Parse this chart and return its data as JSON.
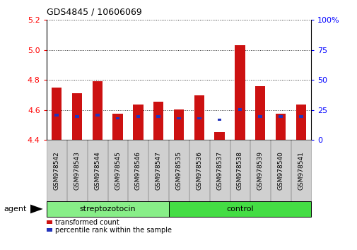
{
  "title": "GDS4845 / 10606069",
  "samples": [
    "GSM978542",
    "GSM978543",
    "GSM978544",
    "GSM978545",
    "GSM978546",
    "GSM978547",
    "GSM978535",
    "GSM978536",
    "GSM978537",
    "GSM978538",
    "GSM978539",
    "GSM978540",
    "GSM978541"
  ],
  "red_values": [
    4.75,
    4.71,
    4.79,
    4.575,
    4.635,
    4.655,
    4.605,
    4.7,
    4.455,
    5.03,
    4.76,
    4.575,
    4.635
  ],
  "blue_values": [
    4.565,
    4.555,
    4.565,
    4.545,
    4.555,
    4.555,
    4.545,
    4.545,
    4.535,
    4.605,
    4.555,
    4.555,
    4.555
  ],
  "ylim_left": [
    4.4,
    5.2
  ],
  "ylim_right": [
    0,
    100
  ],
  "yticks_left": [
    4.4,
    4.6,
    4.8,
    5.0,
    5.2
  ],
  "yticks_right_vals": [
    0,
    25,
    50,
    75,
    100
  ],
  "yticks_right_labels": [
    "0",
    "25",
    "50",
    "75",
    "100%"
  ],
  "bar_color": "#cc1111",
  "blue_color": "#2233bb",
  "bar_bottom": 4.4,
  "bar_width": 0.5,
  "strep_color": "#88ee88",
  "ctrl_color": "#44dd44",
  "agent_label": "agent",
  "legend_red": "transformed count",
  "legend_blue": "percentile rank within the sample",
  "title_fontsize": 9,
  "label_fontsize": 6.5,
  "group_fontsize": 8,
  "legend_fontsize": 7
}
